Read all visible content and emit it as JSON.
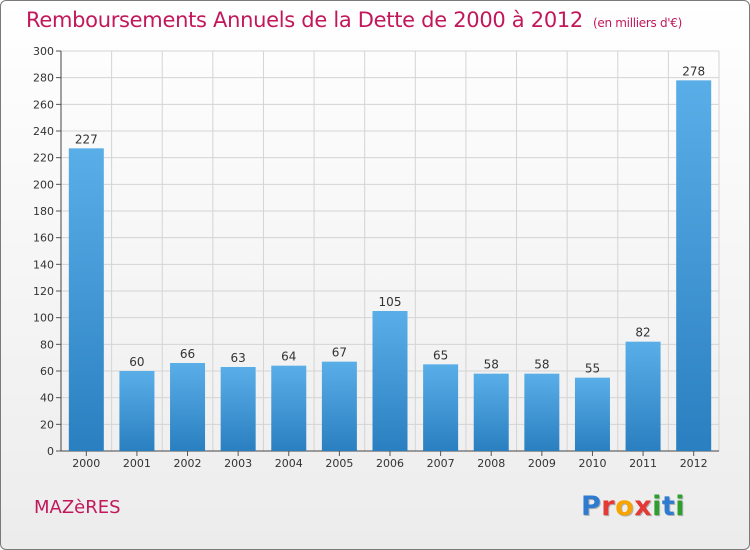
{
  "title": "Remboursements Annuels de la Dette de 2000 à 2012",
  "unit": "(en milliers d'€)",
  "commune": "MAZèRES",
  "logo_text": "Proxiti",
  "logo_colors": [
    "#2e7bcf",
    "#e53935",
    "#f7a400",
    "#e53935",
    "#2e9e2e",
    "#2e7bcf",
    "#2e9e2e"
  ],
  "colors": {
    "title": "#c2185b",
    "bar_top": "#5aaee8",
    "bar_bottom": "#2a7fc0",
    "grid": "#d4d4d4"
  },
  "chart_data": {
    "type": "bar",
    "categories": [
      "2000",
      "2001",
      "2002",
      "2003",
      "2004",
      "2005",
      "2006",
      "2007",
      "2008",
      "2009",
      "2010",
      "2011",
      "2012"
    ],
    "values": [
      227,
      60,
      66,
      63,
      64,
      67,
      105,
      65,
      58,
      58,
      55,
      82,
      278
    ],
    "ylim": [
      0,
      300
    ],
    "yticks": [
      0,
      20,
      40,
      60,
      80,
      100,
      120,
      140,
      160,
      180,
      200,
      220,
      240,
      260,
      280,
      300
    ],
    "grid": true
  }
}
